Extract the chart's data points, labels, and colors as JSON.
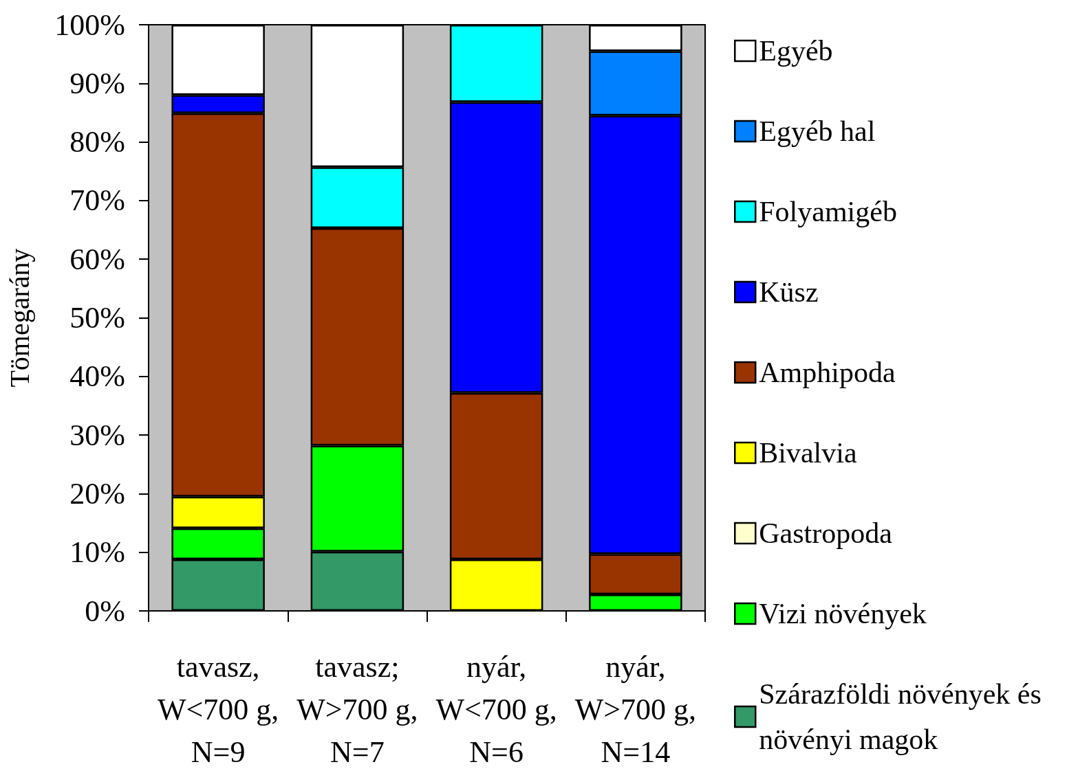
{
  "chart_data": {
    "type": "bar",
    "stacked": true,
    "ylabel": "Tömegarány",
    "categories": [
      "tavasz, W<700 g, N=9",
      "tavasz; W>700 g, N=7",
      "nyár, W<700 g, N=6",
      "nyár, W>700 g, N=14"
    ],
    "series": [
      {
        "name": "Szárazföldi növények és növényi magok",
        "color": "#339966",
        "values": [
          8.8,
          10.1,
          null,
          null
        ]
      },
      {
        "name": "Vizi növények",
        "color": "#00ff00",
        "values": [
          5.3,
          18.1,
          null,
          2.8
        ]
      },
      {
        "name": "Gastropoda",
        "color": "#ffffcc",
        "values": [
          null,
          null,
          null,
          null
        ]
      },
      {
        "name": "Bivalvia",
        "color": "#ffff00",
        "values": [
          5.4,
          null,
          8.8,
          null
        ]
      },
      {
        "name": "Amphipoda",
        "color": "#993300",
        "values": [
          65.4,
          37.1,
          28.4,
          6.9
        ]
      },
      {
        "name": "Küsz",
        "color": "#0000ff",
        "values": [
          3.1,
          null,
          49.6,
          74.8
        ]
      },
      {
        "name": "Folyamigéb",
        "color": "#00ffff",
        "values": [
          null,
          10.4,
          13.2,
          null
        ]
      },
      {
        "name": "Egyéb hal",
        "color": "#0080ff",
        "values": [
          null,
          null,
          null,
          11.0
        ]
      },
      {
        "name": "Egyéb",
        "color": "#ffffff",
        "values": [
          12.0,
          24.3,
          null,
          4.5
        ]
      }
    ],
    "ylim": [
      0,
      100
    ],
    "yticks": [
      {
        "value": 0,
        "label": "0%"
      },
      {
        "value": 10,
        "label": "10%"
      },
      {
        "value": 20,
        "label": "20%"
      },
      {
        "value": 30,
        "label": "30%"
      },
      {
        "value": 40,
        "label": "40%"
      },
      {
        "value": 50,
        "label": "50%"
      },
      {
        "value": 60,
        "label": "60%"
      },
      {
        "value": 70,
        "label": "70%"
      },
      {
        "value": 80,
        "label": "80%"
      },
      {
        "value": 90,
        "label": "90%"
      },
      {
        "value": 100,
        "label": "100%"
      }
    ],
    "grid": false,
    "legend": "right"
  }
}
